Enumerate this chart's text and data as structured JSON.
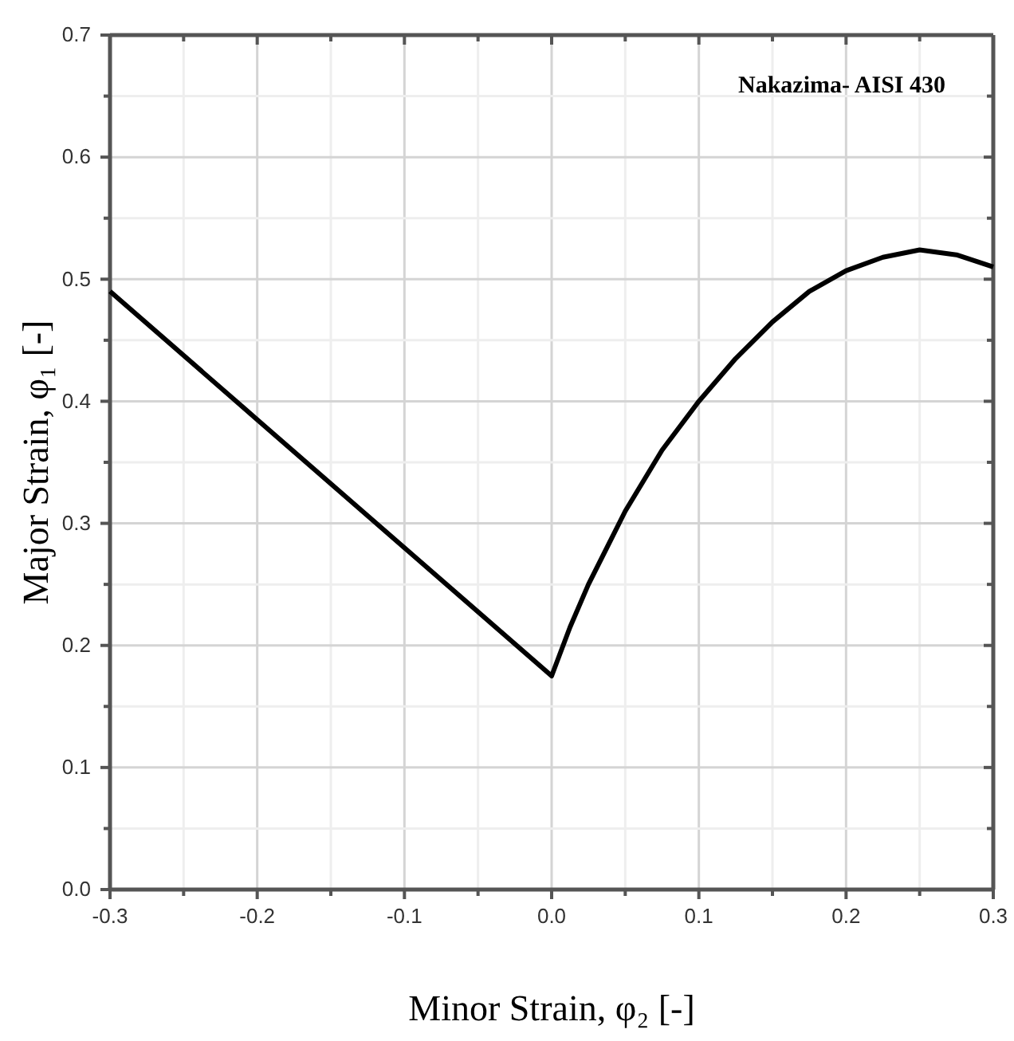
{
  "chart_data": {
    "type": "line",
    "xlabel": "Minor Strain, φ₂ [-]",
    "ylabel": "Major Strain, φ₁ [-]",
    "annotations": [
      "Nakazima- AISI 430"
    ],
    "x": [
      -0.3,
      -0.2,
      -0.1,
      0,
      0.0125,
      0.025,
      0.05,
      0.075,
      0.1,
      0.125,
      0.15,
      0.175,
      0.2,
      0.225,
      0.25,
      0.275,
      0.3
    ],
    "series": [
      {
        "color": "#000000",
        "values": [
          0.49,
          0.385,
          0.28,
          0.175,
          0.215,
          0.25,
          0.31,
          0.36,
          0.4,
          0.435,
          0.465,
          0.49,
          0.507,
          0.518,
          0.524,
          0.52,
          0.51
        ]
      }
    ],
    "xlim": [
      -0.3,
      0.3
    ],
    "xticks": [
      -0.3,
      {
        "value": -0.25,
        "label": null
      },
      -0.2,
      {
        "value": -0.15,
        "label": null
      },
      -0.1,
      {
        "value": -0.05,
        "label": null
      },
      {
        "value": 0,
        "label": "0.0"
      },
      {
        "value": 0.05,
        "label": null
      },
      0.1,
      {
        "value": 0.15,
        "label": null
      },
      0.2,
      {
        "value": 0.25,
        "label": null
      },
      0.3
    ],
    "ylim": [
      0,
      0.7
    ],
    "yticks": [
      {
        "value": 0,
        "label": "0.0"
      },
      {
        "value": 0.05,
        "label": null
      },
      0.1,
      {
        "value": 0.15,
        "label": null
      },
      0.2,
      {
        "value": 0.25,
        "label": null
      },
      0.3,
      {
        "value": 0.35,
        "label": null
      },
      0.4,
      {
        "value": 0.45,
        "label": null
      },
      0.5,
      {
        "value": 0.55,
        "label": null
      },
      0.6,
      {
        "value": 0.65,
        "label": null
      },
      0.7
    ],
    "grid": true,
    "marker": "none",
    "line_style": "solid"
  }
}
